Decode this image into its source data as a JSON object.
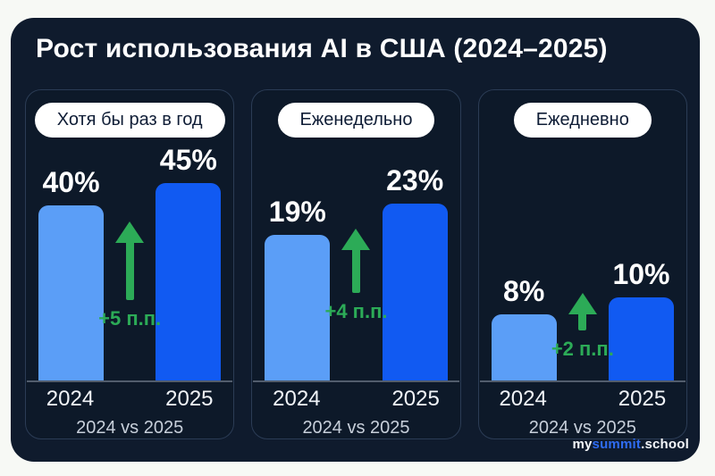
{
  "header": {
    "title": "Рост использования AI в США (2024–2025)"
  },
  "footer": {
    "logo": {
      "prefix": "my",
      "highlight": "summit",
      "suffix": ".school"
    }
  },
  "colors": {
    "page_bg": "#f7f9f5",
    "card_bg": "#0f1b2d",
    "panel_border": "#2b3c55",
    "bar_2024": "#5b9ef7",
    "bar_2025": "#115af2",
    "accent_green": "#2cab57",
    "logo_blue": "#2f6cf1"
  },
  "chart_data": [
    {
      "type": "bar",
      "title": "Хотя бы раз в год",
      "categories": [
        "2024",
        "2025"
      ],
      "values": [
        40,
        45
      ],
      "value_labels": [
        "40%",
        "45%"
      ],
      "delta_annotation": "+5 п.п.",
      "footnote": "2024 vs 2025",
      "unit": "%",
      "legend_position": "none",
      "grid": false
    },
    {
      "type": "bar",
      "title": "Еженедельно",
      "categories": [
        "2024",
        "2025"
      ],
      "values": [
        19,
        23
      ],
      "value_labels": [
        "19%",
        "23%"
      ],
      "delta_annotation": "+4 п.п.",
      "footnote": "2024 vs 2025",
      "unit": "%",
      "legend_position": "none",
      "grid": false
    },
    {
      "type": "bar",
      "title": "Ежедневно",
      "categories": [
        "2024",
        "2025"
      ],
      "values": [
        8,
        10
      ],
      "value_labels": [
        "8%",
        "10%"
      ],
      "delta_annotation": "+2 п.п.",
      "footnote": "2024 vs 2025",
      "unit": "%",
      "legend_position": "none",
      "grid": false
    }
  ]
}
